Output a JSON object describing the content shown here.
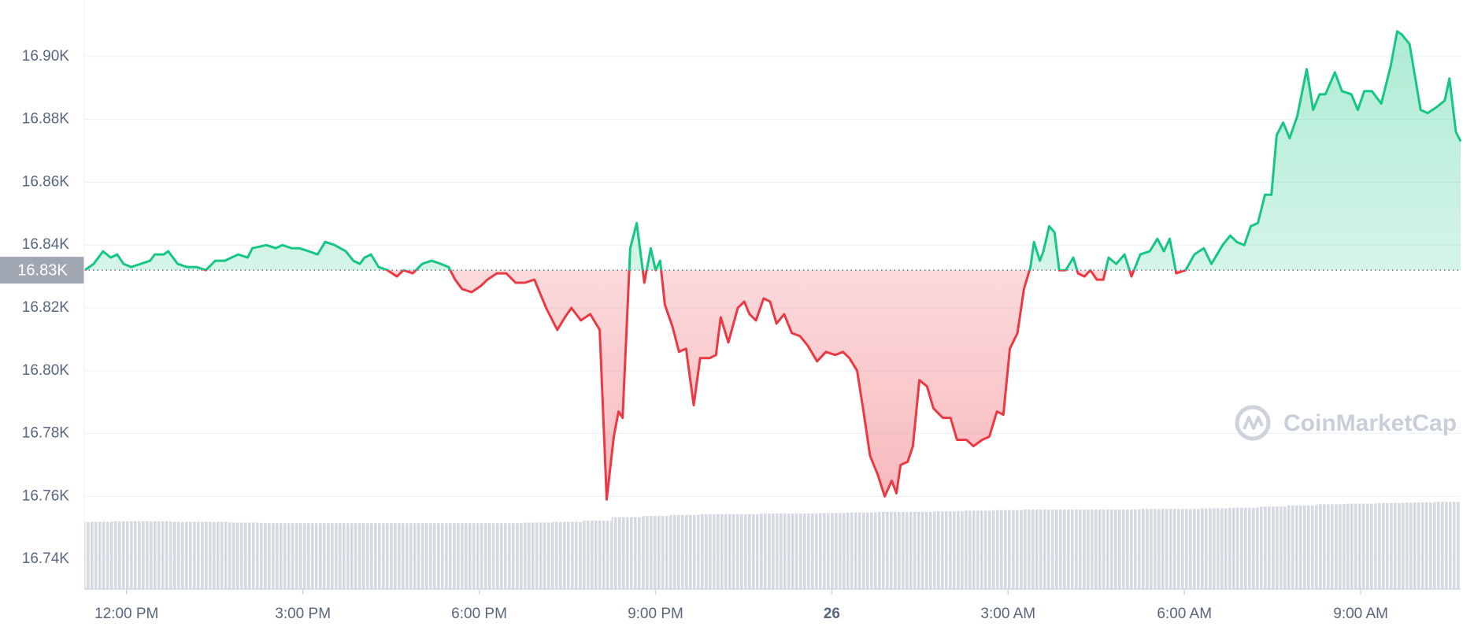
{
  "chart_data": {
    "type": "line",
    "x": [
      -0.71,
      -0.56,
      -0.4,
      -0.27,
      -0.16,
      -0.05,
      0.08,
      0.24,
      0.4,
      0.48,
      0.63,
      0.71,
      0.87,
      1.03,
      1.19,
      1.35,
      1.51,
      1.67,
      1.9,
      2.06,
      2.14,
      2.38,
      2.54,
      2.65,
      2.81,
      2.94,
      3.1,
      3.25,
      3.38,
      3.54,
      3.73,
      3.86,
      3.97,
      4.05,
      4.16,
      4.29,
      4.44,
      4.6,
      4.71,
      4.87,
      5.03,
      5.19,
      5.35,
      5.48,
      5.59,
      5.71,
      5.87,
      6.03,
      6.14,
      6.3,
      6.46,
      6.62,
      6.78,
      6.94,
      7.14,
      7.33,
      7.46,
      7.57,
      7.73,
      7.89,
      8.05,
      8.17,
      8.29,
      8.37,
      8.44,
      8.57,
      8.68,
      8.81,
      8.92,
      9.0,
      9.08,
      9.16,
      9.29,
      9.4,
      9.52,
      9.65,
      9.76,
      9.92,
      10.03,
      10.11,
      10.24,
      10.4,
      10.51,
      10.6,
      10.71,
      10.84,
      10.95,
      11.06,
      11.19,
      11.32,
      11.46,
      11.59,
      11.75,
      11.9,
      12.06,
      12.19,
      12.3,
      12.43,
      12.54,
      12.65,
      12.78,
      12.9,
      13.02,
      13.1,
      13.17,
      13.29,
      13.38,
      13.49,
      13.62,
      13.73,
      13.89,
      14.02,
      14.13,
      14.29,
      14.41,
      14.56,
      14.68,
      14.81,
      14.92,
      15.03,
      15.16,
      15.27,
      15.38,
      15.44,
      15.54,
      15.6,
      15.7,
      15.79,
      15.87,
      15.98,
      16.11,
      16.19,
      16.3,
      16.4,
      16.51,
      16.62,
      16.71,
      16.84,
      16.98,
      17.1,
      17.25,
      17.41,
      17.54,
      17.65,
      17.75,
      17.86,
      18.02,
      18.17,
      18.33,
      18.46,
      18.65,
      18.78,
      18.89,
      19.02,
      19.13,
      19.25,
      19.37,
      19.48,
      19.57,
      19.68,
      19.79,
      19.92,
      20.08,
      20.19,
      20.3,
      20.4,
      20.56,
      20.68,
      20.84,
      20.95,
      21.06,
      21.19,
      21.35,
      21.51,
      21.62,
      21.7,
      21.83,
      22.02,
      22.14,
      22.3,
      22.43,
      22.51,
      22.62,
      22.7
    ],
    "series": [
      {
        "values": [
          16.832,
          16.834,
          16.838,
          16.836,
          16.837,
          16.834,
          16.833,
          16.834,
          16.835,
          16.837,
          16.837,
          16.838,
          16.834,
          16.833,
          16.833,
          16.832,
          16.835,
          16.835,
          16.837,
          16.836,
          16.839,
          16.84,
          16.839,
          16.84,
          16.839,
          16.839,
          16.838,
          16.837,
          16.841,
          16.84,
          16.838,
          16.835,
          16.834,
          16.836,
          16.837,
          16.833,
          16.832,
          16.83,
          16.832,
          16.831,
          16.834,
          16.835,
          16.834,
          16.833,
          16.829,
          16.826,
          16.825,
          16.827,
          16.829,
          16.831,
          16.831,
          16.828,
          16.828,
          16.829,
          16.82,
          16.813,
          16.817,
          16.82,
          16.816,
          16.818,
          16.813,
          16.759,
          16.779,
          16.787,
          16.785,
          16.839,
          16.847,
          16.828,
          16.839,
          16.832,
          16.835,
          16.821,
          16.814,
          16.806,
          16.807,
          16.789,
          16.804,
          16.804,
          16.805,
          16.817,
          16.809,
          16.82,
          16.822,
          16.818,
          16.816,
          16.823,
          16.822,
          16.815,
          16.818,
          16.812,
          16.811,
          16.808,
          16.803,
          16.806,
          16.805,
          16.806,
          16.804,
          16.8,
          16.787,
          16.773,
          16.767,
          16.76,
          16.765,
          16.761,
          16.77,
          16.771,
          16.776,
          16.797,
          16.795,
          16.788,
          16.785,
          16.785,
          16.778,
          16.778,
          16.776,
          16.778,
          16.779,
          16.787,
          16.786,
          16.807,
          16.812,
          16.826,
          16.833,
          16.841,
          16.835,
          16.838,
          16.846,
          16.844,
          16.832,
          16.832,
          16.836,
          16.831,
          16.83,
          16.832,
          16.829,
          16.829,
          16.836,
          16.834,
          16.837,
          16.83,
          16.837,
          16.838,
          16.842,
          16.838,
          16.842,
          16.831,
          16.832,
          16.837,
          16.839,
          16.834,
          16.84,
          16.843,
          16.841,
          16.84,
          16.846,
          16.847,
          16.856,
          16.856,
          16.875,
          16.879,
          16.874,
          16.881,
          16.896,
          16.883,
          16.888,
          16.888,
          16.895,
          16.889,
          16.888,
          16.883,
          16.889,
          16.889,
          16.885,
          16.897,
          16.908,
          16.907,
          16.904,
          16.883,
          16.882,
          16.884,
          16.886,
          16.893,
          16.876,
          16.873
        ],
        "up_color": "#16c784",
        "down_color": "#ea3943"
      },
      {
        "axis": "y2",
        "color": "#d5d9e1",
        "x": [
          -0.5,
          0,
          0.5,
          1,
          1.5,
          2,
          2.5,
          3,
          3.5,
          4,
          4.5,
          5,
          5.5,
          6,
          6.5,
          7,
          7.5,
          8,
          8.5,
          9,
          9.5,
          10,
          10.5,
          11,
          11.5,
          12,
          12.5,
          13,
          13.5,
          14,
          14.5,
          15,
          15.5,
          16,
          16.5,
          17,
          17.5,
          18,
          18.5,
          19,
          19.5,
          20,
          20.5,
          21,
          21.5,
          22,
          22.5
        ],
        "values": [
          11.4,
          11.5,
          11.5,
          11.4,
          11.4,
          11.3,
          11.2,
          11.2,
          11.2,
          11.2,
          11.2,
          11.2,
          11.2,
          11.2,
          11.2,
          11.3,
          11.4,
          11.6,
          12.2,
          12.4,
          12.6,
          12.7,
          12.7,
          12.8,
          12.8,
          12.9,
          13.0,
          13.1,
          13.1,
          13.2,
          13.3,
          13.4,
          13.5,
          13.5,
          13.5,
          13.5,
          13.6,
          13.6,
          13.7,
          13.8,
          14.0,
          14.2,
          14.4,
          14.5,
          14.6,
          14.7,
          14.8
        ]
      }
    ],
    "reference": {
      "value": 16.832,
      "label": "16.83K"
    },
    "xlim": [
      -0.72,
      22.7
    ],
    "xticks": [
      {
        "value": 0,
        "label": "12:00 PM"
      },
      {
        "value": 3,
        "label": "3:00 PM"
      },
      {
        "value": 6,
        "label": "6:00 PM"
      },
      {
        "value": 9,
        "label": "9:00 PM"
      },
      {
        "value": 12,
        "label": "26"
      },
      {
        "value": 15,
        "label": "3:00 AM"
      },
      {
        "value": 18,
        "label": "6:00 AM"
      },
      {
        "value": 21,
        "label": "9:00 AM"
      }
    ],
    "ylim": [
      16.7305,
      16.918
    ],
    "yticks": [
      {
        "value": 16.74,
        "label": "16.74K"
      },
      {
        "value": 16.76,
        "label": "16.76K"
      },
      {
        "value": 16.78,
        "label": "16.78K"
      },
      {
        "value": 16.8,
        "label": "16.80K"
      },
      {
        "value": 16.82,
        "label": "16.82K"
      },
      {
        "value": 16.84,
        "label": "16.84K"
      },
      {
        "value": 16.86,
        "label": "16.86K"
      },
      {
        "value": 16.88,
        "label": "16.88K"
      },
      {
        "value": 16.9,
        "label": "16.90K"
      }
    ],
    "y2lim": [
      0,
      100
    ],
    "grid": true,
    "watermark": "CoinMarketCap"
  }
}
